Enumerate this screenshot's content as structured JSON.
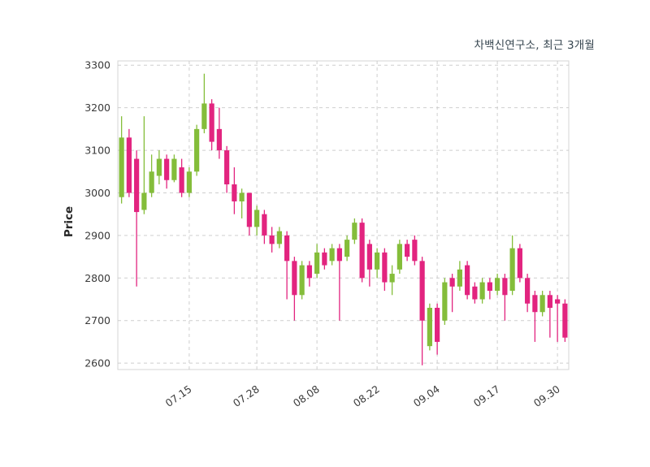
{
  "chart_data": {
    "type": "candlestick",
    "title": "차백신연구소, 최근 3개월",
    "ylabel": "Price",
    "ylim": [
      2585,
      3310
    ],
    "y_ticks": [
      2600,
      2700,
      2800,
      2900,
      3000,
      3100,
      3200,
      3300
    ],
    "x_tick_labels": [
      "07.15",
      "07.28",
      "08.08",
      "08.22",
      "09.04",
      "09.17",
      "09.30"
    ],
    "x_tick_indices": [
      9,
      18,
      26,
      34,
      42,
      50,
      58
    ],
    "grid": true,
    "legend": "none",
    "up_color": "#84bd3a",
    "down_color": "#e2247f",
    "grid_color": "#c9c9c9",
    "border_color": "#d5d5d5",
    "candles_ohlc": [
      [
        2990,
        3180,
        2975,
        3130
      ],
      [
        3130,
        3150,
        2990,
        3000
      ],
      [
        3080,
        3100,
        2780,
        2955
      ],
      [
        2960,
        3180,
        2950,
        3000
      ],
      [
        3000,
        3090,
        2990,
        3050
      ],
      [
        3040,
        3100,
        3020,
        3080
      ],
      [
        3080,
        3090,
        3010,
        3030
      ],
      [
        3030,
        3090,
        3025,
        3080
      ],
      [
        3060,
        3080,
        2990,
        3000
      ],
      [
        3000,
        3060,
        2990,
        3050
      ],
      [
        3050,
        3160,
        3040,
        3150
      ],
      [
        3150,
        3280,
        3140,
        3210
      ],
      [
        3210,
        3220,
        3100,
        3120
      ],
      [
        3150,
        3200,
        3080,
        3100
      ],
      [
        3100,
        3110,
        3000,
        3020
      ],
      [
        3020,
        3060,
        2950,
        2980
      ],
      [
        2980,
        3010,
        2940,
        3000
      ],
      [
        3000,
        3000,
        2900,
        2920
      ],
      [
        2920,
        2970,
        2900,
        2960
      ],
      [
        2950,
        2960,
        2880,
        2900
      ],
      [
        2900,
        2920,
        2860,
        2880
      ],
      [
        2880,
        2920,
        2870,
        2910
      ],
      [
        2900,
        2910,
        2750,
        2840
      ],
      [
        2840,
        2850,
        2700,
        2760
      ],
      [
        2760,
        2840,
        2750,
        2830
      ],
      [
        2830,
        2840,
        2780,
        2800
      ],
      [
        2810,
        2880,
        2800,
        2860
      ],
      [
        2860,
        2870,
        2820,
        2830
      ],
      [
        2840,
        2880,
        2830,
        2870
      ],
      [
        2870,
        2880,
        2700,
        2840
      ],
      [
        2850,
        2900,
        2840,
        2890
      ],
      [
        2890,
        2940,
        2880,
        2930
      ],
      [
        2930,
        2940,
        2790,
        2800
      ],
      [
        2880,
        2890,
        2780,
        2820
      ],
      [
        2820,
        2870,
        2800,
        2860
      ],
      [
        2860,
        2870,
        2770,
        2790
      ],
      [
        2790,
        2830,
        2760,
        2810
      ],
      [
        2820,
        2890,
        2810,
        2880
      ],
      [
        2880,
        2890,
        2840,
        2850
      ],
      [
        2890,
        2900,
        2830,
        2840
      ],
      [
        2840,
        2850,
        2595,
        2700
      ],
      [
        2640,
        2740,
        2630,
        2730
      ],
      [
        2730,
        2740,
        2620,
        2650
      ],
      [
        2700,
        2800,
        2690,
        2790
      ],
      [
        2800,
        2810,
        2720,
        2780
      ],
      [
        2780,
        2840,
        2770,
        2820
      ],
      [
        2830,
        2840,
        2750,
        2760
      ],
      [
        2780,
        2790,
        2740,
        2750
      ],
      [
        2750,
        2800,
        2740,
        2790
      ],
      [
        2790,
        2800,
        2750,
        2770
      ],
      [
        2770,
        2810,
        2760,
        2800
      ],
      [
        2800,
        2810,
        2700,
        2760
      ],
      [
        2770,
        2900,
        2760,
        2870
      ],
      [
        2870,
        2880,
        2790,
        2800
      ],
      [
        2800,
        2810,
        2720,
        2740
      ],
      [
        2760,
        2770,
        2650,
        2720
      ],
      [
        2720,
        2770,
        2710,
        2760
      ],
      [
        2760,
        2770,
        2660,
        2730
      ],
      [
        2750,
        2760,
        2650,
        2740
      ],
      [
        2740,
        2750,
        2650,
        2660
      ]
    ]
  }
}
